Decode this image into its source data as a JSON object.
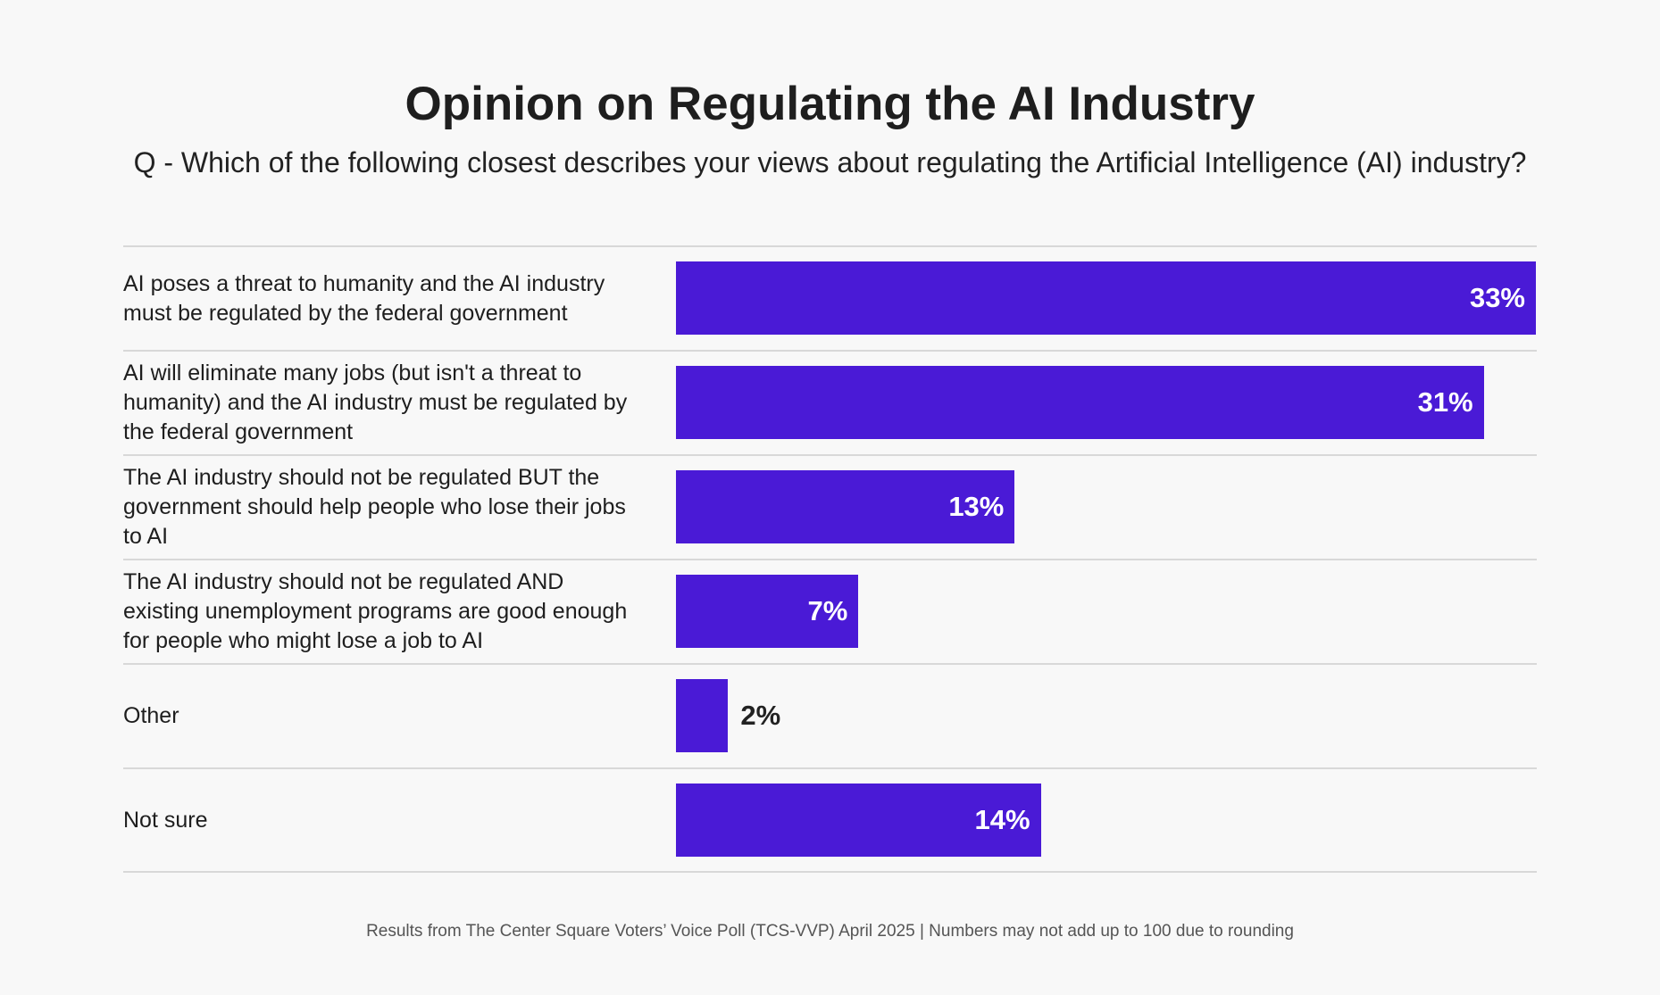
{
  "chart_data": {
    "type": "bar",
    "orientation": "horizontal",
    "title": "Opinion on Regulating the AI Industry",
    "subtitle": "Q - Which of the following closest describes your views about regulating the Artificial Intelligence (AI) industry?",
    "categories": [
      "AI poses a threat to humanity and the AI industry must be regulated by the federal government",
      "AI will eliminate many jobs (but isn't a threat to humanity) and the AI industry must be regulated by the federal government",
      "The AI industry should not be regulated BUT the government should help people who lose their jobs to AI",
      "The AI industry should not be regulated AND existing unemployment programs are good enough for people who might lose a job to AI",
      "Other",
      "Not sure"
    ],
    "values": [
      33,
      31,
      13,
      7,
      2,
      14
    ],
    "data_labels": [
      "33%",
      "31%",
      "13%",
      "7%",
      "2%",
      "14%"
    ],
    "xlim": [
      0,
      33
    ],
    "grid": false,
    "legend": "none",
    "bar_color": "#4a1ad6",
    "footnote": "Results from The Center Square Voters’ Voice Poll (TCS-VVP) April 2025 | Numbers may not add up to 100 due to rounding"
  }
}
